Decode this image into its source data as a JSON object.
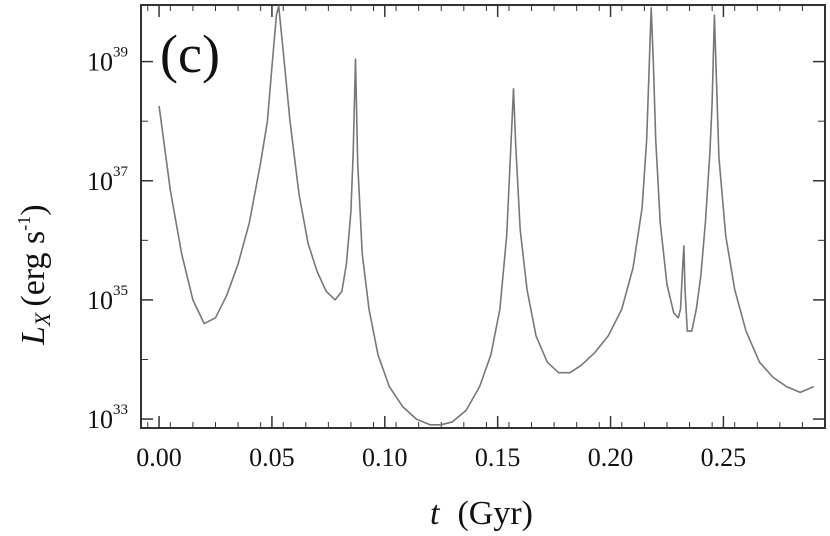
{
  "chart_data": {
    "type": "line",
    "panel_label": "(c)",
    "xlabel": {
      "symbol": "t",
      "unit": "(Gyr)"
    },
    "ylabel": {
      "symbol": "L",
      "subscript": "X",
      "unit_open": "(erg s",
      "unit_exp": "-1",
      "unit_close": ")"
    },
    "xlim": [
      -0.008,
      0.295
    ],
    "ylim": [
      10,
      40
    ],
    "y_scale": "log",
    "x_ticks": [
      {
        "value": 0.0,
        "label": "0.00"
      },
      {
        "value": 0.05,
        "label": "0.05"
      },
      {
        "value": 0.1,
        "label": "0.10"
      },
      {
        "value": 0.15,
        "label": "0.15"
      },
      {
        "value": 0.2,
        "label": "0.20"
      },
      {
        "value": 0.25,
        "label": "0.25"
      }
    ],
    "y_ticks": [
      {
        "exponent": 33,
        "base": "10",
        "exp_label": "33"
      },
      {
        "exponent": 35,
        "base": "10",
        "exp_label": "35"
      },
      {
        "exponent": 37,
        "base": "10",
        "exp_label": "37"
      },
      {
        "exponent": 39,
        "base": "10",
        "exp_label": "39"
      }
    ],
    "grid": false,
    "line_color": "#777777",
    "series": [
      {
        "x": [
          0.0,
          0.005,
          0.01,
          0.015,
          0.02,
          0.025,
          0.03,
          0.035,
          0.04,
          0.045,
          0.048,
          0.05,
          0.052,
          0.053,
          0.055,
          0.058,
          0.062,
          0.066,
          0.07,
          0.074,
          0.078,
          0.081,
          0.083,
          0.085,
          0.086,
          0.087,
          0.088,
          0.09,
          0.093,
          0.097,
          0.102,
          0.108,
          0.114,
          0.12,
          0.125,
          0.13,
          0.136,
          0.142,
          0.147,
          0.151,
          0.154,
          0.156,
          0.157,
          0.158,
          0.16,
          0.163,
          0.167,
          0.172,
          0.177,
          0.182,
          0.187,
          0.193,
          0.199,
          0.205,
          0.21,
          0.214,
          0.216,
          0.218,
          0.219,
          0.22,
          0.222,
          0.225,
          0.228,
          0.23,
          0.231,
          0.232,
          0.2325,
          0.233,
          0.234,
          0.236,
          0.238,
          0.24,
          0.242,
          0.244,
          0.245,
          0.246,
          0.248,
          0.251,
          0.255,
          0.26,
          0.266,
          0.272,
          0.278,
          0.284,
          0.29
        ],
        "y": [
          1.8e+38,
          7e+36,
          6e+35,
          1e+35,
          4e+34,
          5e+34,
          1.2e+35,
          4e+35,
          2e+36,
          2e+37,
          1e+38,
          8e+38,
          6e+39,
          1e+40,
          1.5e+39,
          1e+38,
          6e+36,
          9e+35,
          3e+35,
          1.4e+35,
          1e+35,
          1.4e+35,
          4e+35,
          3e+36,
          3e+37,
          1.1e+39,
          2e+37,
          6e+35,
          7e+34,
          1.2e+34,
          3.5e+33,
          1.6e+33,
          1e+33,
          8e+32,
          8e+32,
          9e+32,
          1.4e+33,
          3.5e+33,
          1.2e+34,
          7e+34,
          1.2e+36,
          5e+37,
          3.5e+38,
          4e+37,
          1.5e+36,
          1.5e+35,
          2.5e+34,
          9e+33,
          6e+33,
          6e+33,
          8e+33,
          1.3e+34,
          2.5e+34,
          7e+34,
          3.5e+35,
          3.5e+36,
          5e+37,
          8e+39,
          9e+38,
          5e+37,
          2e+36,
          1.8e+35,
          6e+34,
          5e+34,
          7e+34,
          4e+35,
          8e+35,
          1.5e+35,
          3e+34,
          3e+34,
          7e+34,
          2.5e+35,
          2e+36,
          3e+37,
          2e+38,
          6e+39,
          2.5e+37,
          1.2e+36,
          1.5e+35,
          3e+34,
          9e+33,
          5e+33,
          3.5e+33,
          2.8e+33,
          3.5e+33
        ]
      }
    ]
  }
}
